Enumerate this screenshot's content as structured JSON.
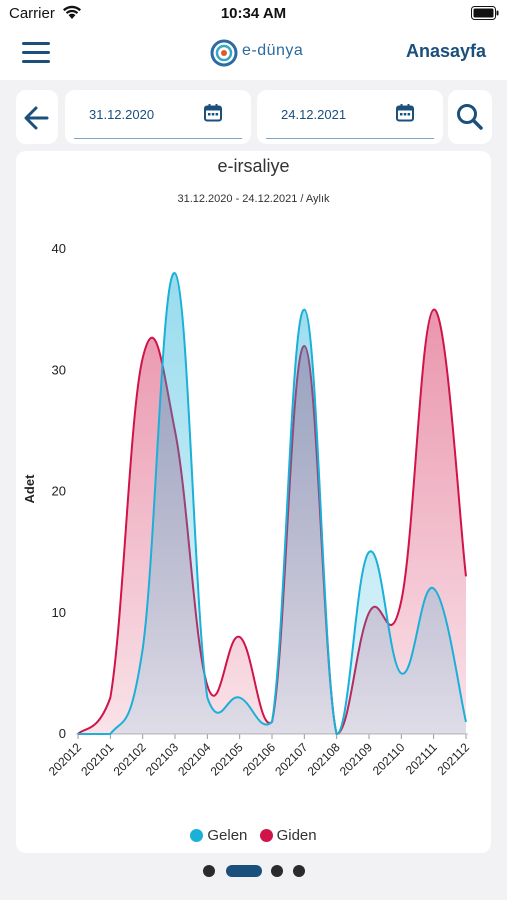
{
  "status_bar": {
    "carrier": "Carrier",
    "time": "10:34 AM"
  },
  "nav": {
    "logo_text": "e-dünya",
    "home_label": "Anasayfa"
  },
  "filters": {
    "start_date": "31.12.2020",
    "end_date": "24.12.2021"
  },
  "colors": {
    "gelen": "#1ab0d8",
    "giden": "#d0144a",
    "brand": "#1b4f7c"
  },
  "chart_data": {
    "type": "area",
    "title": "e-irsaliye",
    "subtitle": "31.12.2020 - 24.12.2021 / Aylık",
    "ylabel": "Adet",
    "xlabel": "",
    "categories": [
      "202012",
      "202101",
      "202102",
      "202103",
      "202104",
      "202105",
      "202106",
      "202107",
      "202108",
      "202109",
      "202110",
      "202111",
      "202112"
    ],
    "yticks": [
      0,
      10,
      20,
      30,
      40
    ],
    "ylim": [
      0,
      40
    ],
    "grid": false,
    "legend_position": "bottom",
    "series": [
      {
        "name": "Gelen",
        "color": "#1ab0d8",
        "values": [
          0,
          0,
          7,
          38,
          3,
          3,
          1,
          35,
          0,
          15,
          5,
          12,
          1
        ]
      },
      {
        "name": "Giden",
        "color": "#d0144a",
        "values": [
          0,
          3,
          31,
          25,
          4,
          8,
          1,
          32,
          0,
          10,
          11,
          35,
          13
        ]
      }
    ]
  },
  "pager": {
    "pages": 4,
    "active_index": 1
  }
}
